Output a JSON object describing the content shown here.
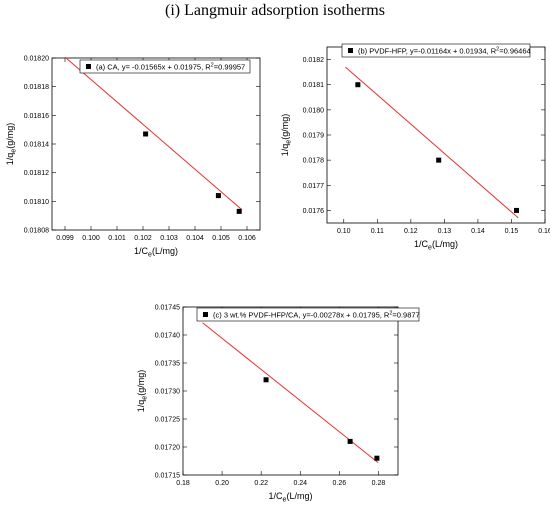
{
  "page": {
    "title": "(i) Langmuir adsorption isotherms"
  },
  "chart_data": [
    {
      "type": "scatter",
      "title": "",
      "legend": "(a) CA, y= -0.01565x + 0.01975, R²=0.99957",
      "xlabel": "1/Ce(L/mg)",
      "ylabel": "1/qe(g/mg)",
      "xlim": [
        0.0985,
        0.1065
      ],
      "ylim": [
        0.01808,
        0.0182
      ],
      "xticks": [
        0.099,
        0.1,
        0.101,
        0.102,
        0.103,
        0.104,
        0.105,
        0.106
      ],
      "xtick_labels": [
        "0.099",
        "0.100",
        "0.101",
        "0.102",
        "0.103",
        "0.104",
        "0.105",
        "0.106"
      ],
      "yticks": [
        0.01808,
        0.0181,
        0.01812,
        0.01814,
        0.01816,
        0.01818,
        0.0182
      ],
      "ytick_labels": [
        "0.01808",
        "0.01810",
        "0.01812",
        "0.01814",
        "0.01816",
        "0.01818",
        "0.01820"
      ],
      "points": [
        {
          "x": 0.1021,
          "y": 0.018147
        },
        {
          "x": 0.1049,
          "y": 0.018104
        },
        {
          "x": 0.1057,
          "y": 0.018093
        }
      ],
      "fit": {
        "slope": -0.01565,
        "intercept": 0.01975,
        "x0": 0.099,
        "x1": 0.1058
      }
    },
    {
      "type": "scatter",
      "title": "",
      "legend": "(b) PVDF-HFP, y=-0.01164x + 0.01934, R²=0.96464",
      "xlabel": "1/Ce(L/mg)",
      "ylabel": "1/qe(g/mg)",
      "xlim": [
        0.095,
        0.16
      ],
      "ylim": [
        0.01755,
        0.01825
      ],
      "xticks": [
        0.1,
        0.11,
        0.12,
        0.13,
        0.14,
        0.15,
        0.16
      ],
      "xtick_labels": [
        "0.10",
        "0.11",
        "0.12",
        "0.13",
        "0.14",
        "0.15",
        "0.16"
      ],
      "yticks": [
        0.0176,
        0.0177,
        0.0178,
        0.0179,
        0.018,
        0.0181,
        0.0182
      ],
      "ytick_labels": [
        "0.0176",
        "0.0177",
        "0.0178",
        "0.0179",
        "0.0180",
        "0.0181",
        "0.0182"
      ],
      "points": [
        {
          "x": 0.1042,
          "y": 0.0181
        },
        {
          "x": 0.1283,
          "y": 0.0178
        },
        {
          "x": 0.1515,
          "y": 0.0176
        }
      ],
      "fit": {
        "slope": -0.01164,
        "intercept": 0.01934,
        "x0": 0.1005,
        "x1": 0.152
      }
    },
    {
      "type": "scatter",
      "title": "",
      "legend": "(c) 3 wt.% PVDF-HFP/CA, y=-0.00278x + 0.01795, R²=0.9877",
      "xlabel": "1/Ce(L/mg)",
      "ylabel": "1/qe(g/mg)",
      "xlim": [
        0.18,
        0.29
      ],
      "ylim": [
        0.01715,
        0.01745
      ],
      "xticks": [
        0.18,
        0.2,
        0.22,
        0.24,
        0.26,
        0.28
      ],
      "xtick_labels": [
        "0.18",
        "0.20",
        "0.22",
        "0.24",
        "0.26",
        "0.28"
      ],
      "yticks": [
        0.01715,
        0.0172,
        0.01725,
        0.0173,
        0.01735,
        0.0174,
        0.01745
      ],
      "ytick_labels": [
        "0.01715",
        "0.01720",
        "0.01725",
        "0.01730",
        "0.01735",
        "0.01740",
        "0.01745"
      ],
      "points": [
        {
          "x": 0.2225,
          "y": 0.01732
        },
        {
          "x": 0.2655,
          "y": 0.01721
        },
        {
          "x": 0.2792,
          "y": 0.01718
        }
      ],
      "fit": {
        "slope": -0.00278,
        "intercept": 0.01795,
        "x0": 0.19,
        "x1": 0.2798
      }
    }
  ]
}
